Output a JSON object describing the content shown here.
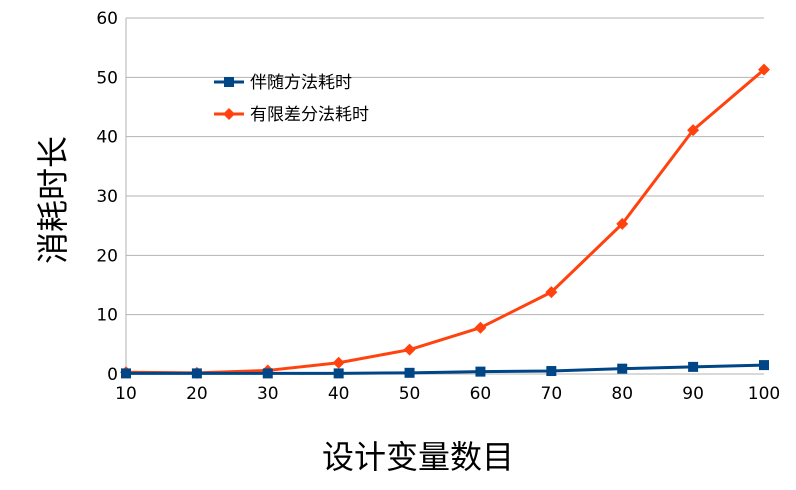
{
  "chart_data": {
    "type": "line",
    "xlabel": "设计变量数目",
    "ylabel": "消耗时长",
    "x": [
      10,
      20,
      30,
      40,
      50,
      60,
      70,
      80,
      90,
      100
    ],
    "x_tick_labels": [
      "10",
      "20",
      "30",
      "40",
      "50",
      "60",
      "70",
      "80",
      "90",
      "100"
    ],
    "y_tick_labels": [
      "0",
      "10",
      "20",
      "30",
      "40",
      "50",
      "60"
    ],
    "ylim": [
      0,
      60
    ],
    "grid": "horizontal",
    "legend_position": "upper-left inside plot",
    "series": [
      {
        "name": "伴随方法耗时",
        "color": "#004586",
        "marker": "square",
        "values": [
          0.1,
          0.1,
          0.1,
          0.1,
          0.2,
          0.4,
          0.5,
          0.9,
          1.2,
          1.5
        ]
      },
      {
        "name": "有限差分法耗时",
        "color": "#ff420e",
        "marker": "diamond",
        "values": [
          0.3,
          0.2,
          0.6,
          1.9,
          4.1,
          7.8,
          13.8,
          25.3,
          41.1,
          51.3
        ]
      }
    ]
  }
}
